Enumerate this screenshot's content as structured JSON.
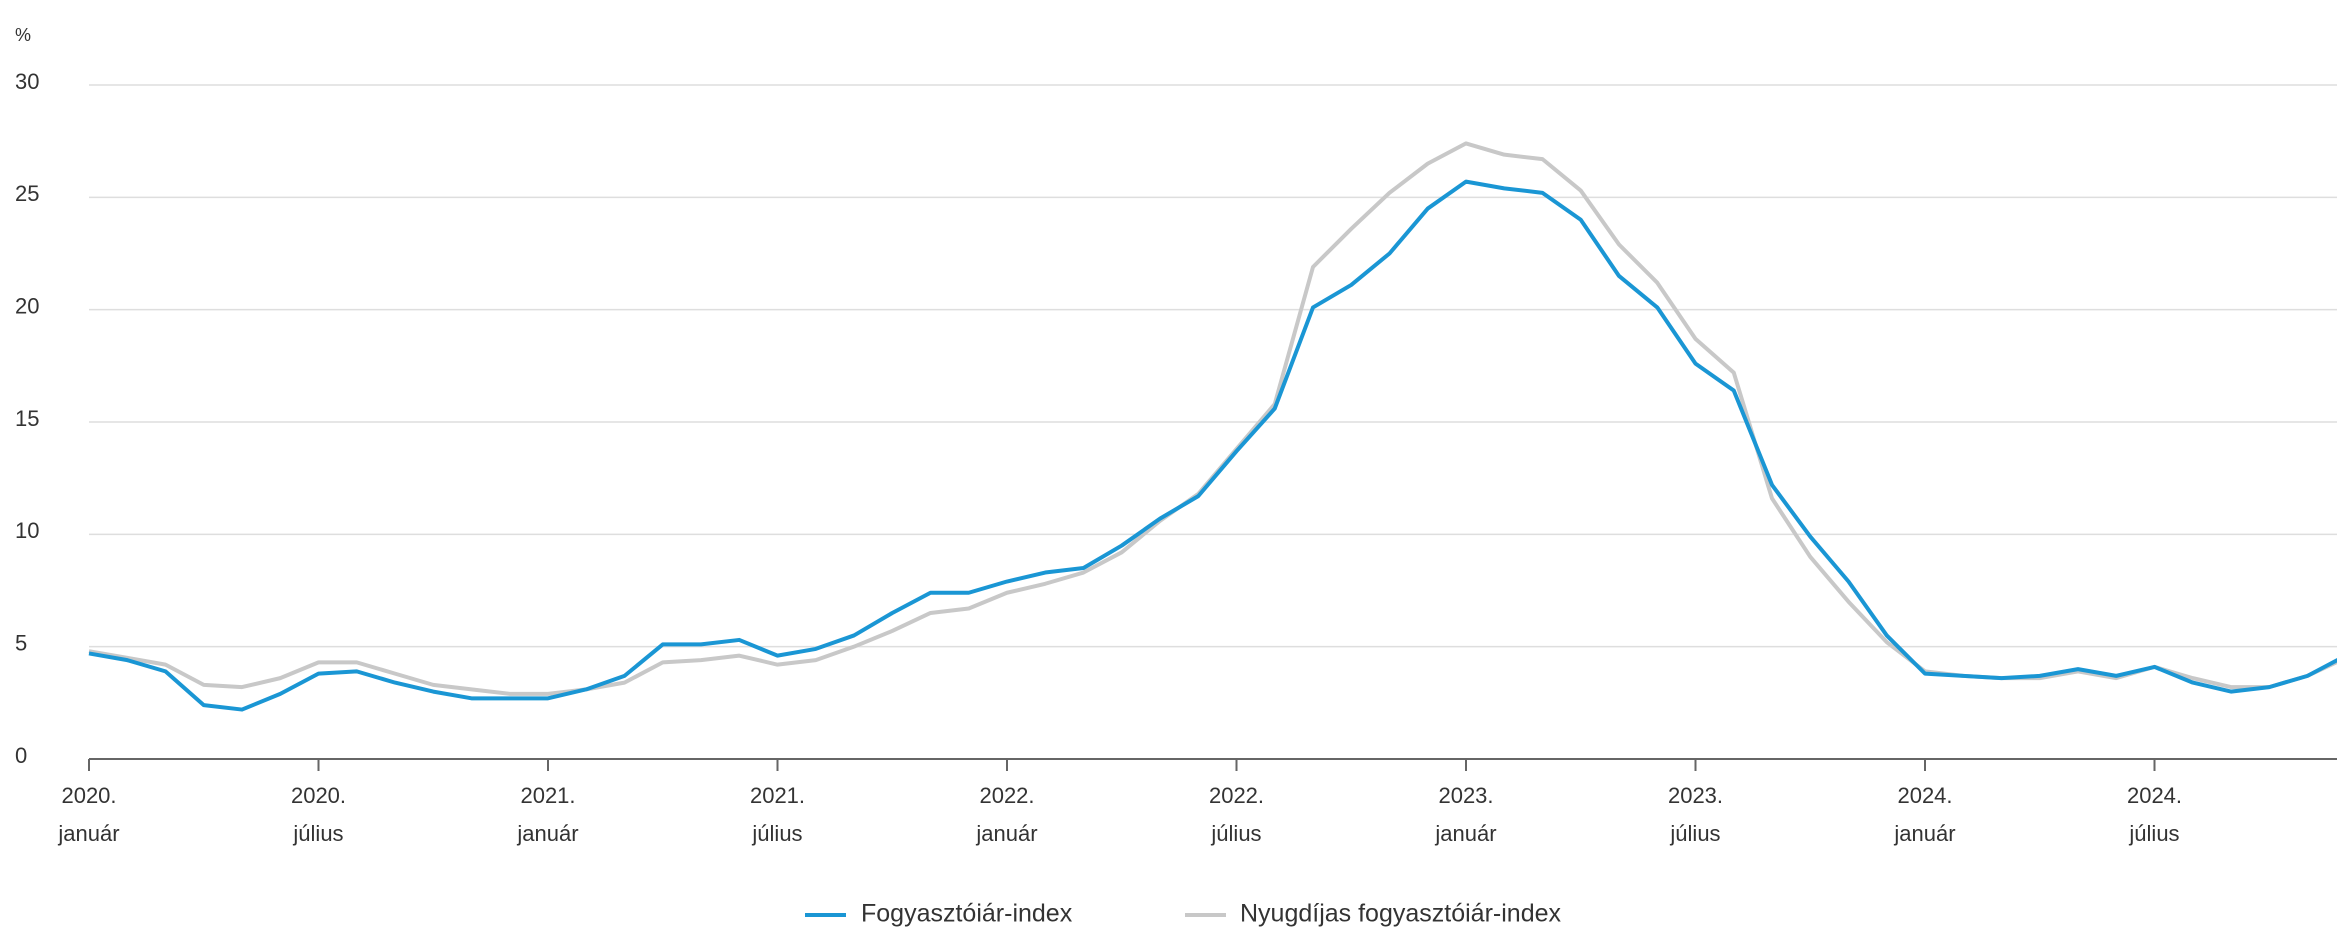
{
  "chart_data": {
    "type": "line",
    "y_label": "%",
    "categories": [
      [
        "2020.",
        "január"
      ],
      null,
      null,
      null,
      null,
      null,
      [
        "2020.",
        "július"
      ],
      null,
      null,
      null,
      null,
      null,
      [
        "2021.",
        "január"
      ],
      null,
      null,
      null,
      null,
      null,
      [
        "2021.",
        "július"
      ],
      null,
      null,
      null,
      null,
      null,
      [
        "2022.",
        "január"
      ],
      null,
      null,
      null,
      null,
      null,
      [
        "2022.",
        "július"
      ],
      null,
      null,
      null,
      null,
      null,
      [
        "2023.",
        "január"
      ],
      null,
      null,
      null,
      null,
      null,
      [
        "2023.",
        "július"
      ],
      null,
      null,
      null,
      null,
      null,
      [
        "2024.",
        "január"
      ],
      null,
      null,
      null,
      null,
      null,
      [
        "2024.",
        "július"
      ],
      null,
      null,
      null,
      null,
      null
    ],
    "series": [
      {
        "name": "Fogyasztóiár-index",
        "color": "#1a96d4",
        "values": [
          4.7,
          4.4,
          3.9,
          2.4,
          2.2,
          2.9,
          3.8,
          3.9,
          3.4,
          3.0,
          2.7,
          2.7,
          2.7,
          3.1,
          3.7,
          5.1,
          5.1,
          5.3,
          4.6,
          4.9,
          5.5,
          6.5,
          7.4,
          7.4,
          7.9,
          8.3,
          8.5,
          9.5,
          10.7,
          11.7,
          13.7,
          15.6,
          20.1,
          21.1,
          22.5,
          24.5,
          25.7,
          25.4,
          25.2,
          24.0,
          21.5,
          20.1,
          17.6,
          16.4,
          12.2,
          9.9,
          7.9,
          5.5,
          3.8,
          3.7,
          3.6,
          3.7,
          4.0,
          3.7,
          4.1,
          3.4,
          3.0,
          3.2,
          3.7,
          4.6
        ]
      },
      {
        "name": "Nyugdíjas fogyasztóiár-index",
        "color": "#c8c8c8",
        "values": [
          4.8,
          4.5,
          4.2,
          3.3,
          3.2,
          3.6,
          4.3,
          4.3,
          3.8,
          3.3,
          3.1,
          2.9,
          2.9,
          3.1,
          3.4,
          4.3,
          4.4,
          4.6,
          4.2,
          4.4,
          5.0,
          5.7,
          6.5,
          6.7,
          7.4,
          7.8,
          8.3,
          9.2,
          10.6,
          11.8,
          13.8,
          15.8,
          21.9,
          23.6,
          25.2,
          26.5,
          27.4,
          26.9,
          26.7,
          25.3,
          22.9,
          21.2,
          18.7,
          17.2,
          11.6,
          9.0,
          7.0,
          5.2,
          3.9,
          3.7,
          3.6,
          3.6,
          3.9,
          3.6,
          4.1,
          3.6,
          3.2,
          3.2,
          3.7,
          4.5
        ]
      }
    ],
    "ylim": [
      0,
      30
    ],
    "yticks": [
      0,
      5,
      10,
      15,
      20,
      25,
      30
    ],
    "grid": true
  }
}
